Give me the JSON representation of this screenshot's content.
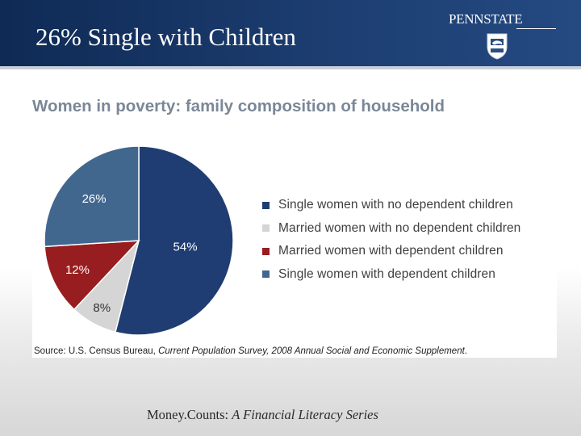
{
  "slide": {
    "title": "26% Single with Children",
    "logo_text": "PENNSTATE",
    "footer_prefix": "Money.Counts: ",
    "footer_italic": "A Financial Literacy Series"
  },
  "chart_data": {
    "type": "pie",
    "title": "Women in poverty: family composition of household",
    "source_prefix": "Source: U.S. Census Bureau, ",
    "source_italic": "Current Population Survey, 2008 Annual Social and Economic Supplement",
    "source_suffix": ".",
    "legend_position": "right",
    "slices": [
      {
        "label": "Single women with no dependent children",
        "value": 54,
        "value_label": "54%",
        "color": "#1f3d73",
        "label_color": "#ffffff"
      },
      {
        "label": "Married women with no dependent children",
        "value": 8,
        "value_label": "8%",
        "color": "#d5d5d5",
        "label_color": "#333333"
      },
      {
        "label": "Married women with dependent children",
        "value": 12,
        "value_label": "12%",
        "color": "#981d20",
        "label_color": "#ffffff"
      },
      {
        "label": "Single women with dependent children",
        "value": 26,
        "value_label": "26%",
        "color": "#42678f",
        "label_color": "#ffffff"
      }
    ]
  }
}
